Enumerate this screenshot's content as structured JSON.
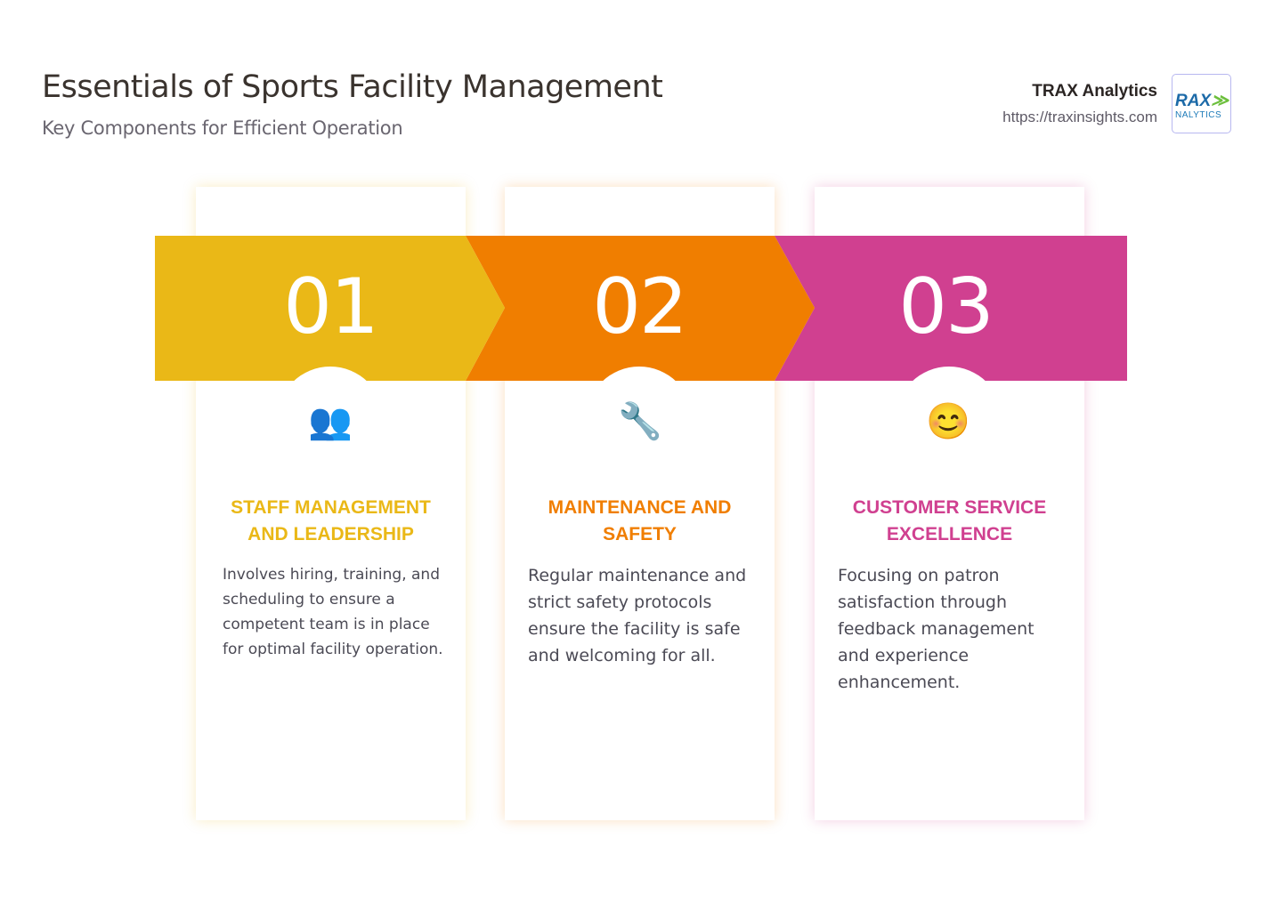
{
  "header": {
    "title": "Essentials of Sports Facility Management",
    "subtitle": "Key Components for Efficient Operation"
  },
  "brand": {
    "name": "TRAX Analytics",
    "url": "https://traxinsights.com",
    "logo_text": "TRAX ANALYTICS"
  },
  "steps": [
    {
      "number": "01",
      "icon": "busts-in-silhouette-icon",
      "emoji": "👥",
      "title": "STAFF MANAGEMENT AND LEADERSHIP",
      "description": "Involves hiring, training, and scheduling to ensure a competent team is in place for optimal facility operation.",
      "color": "#EAB817"
    },
    {
      "number": "02",
      "icon": "wrench-icon",
      "emoji": "🔧",
      "title": "MAINTENANCE AND SAFETY",
      "description": "Regular maintenance and strict safety protocols ensure the facility is safe and welcoming for all.",
      "color": "#F07E00"
    },
    {
      "number": "03",
      "icon": "smiling-face-icon",
      "emoji": "😊",
      "title": "CUSTOMER SERVICE EXCELLENCE",
      "description": "Focusing on patron satisfaction through feedback management and experience enhancement.",
      "color": "#D04090"
    }
  ]
}
